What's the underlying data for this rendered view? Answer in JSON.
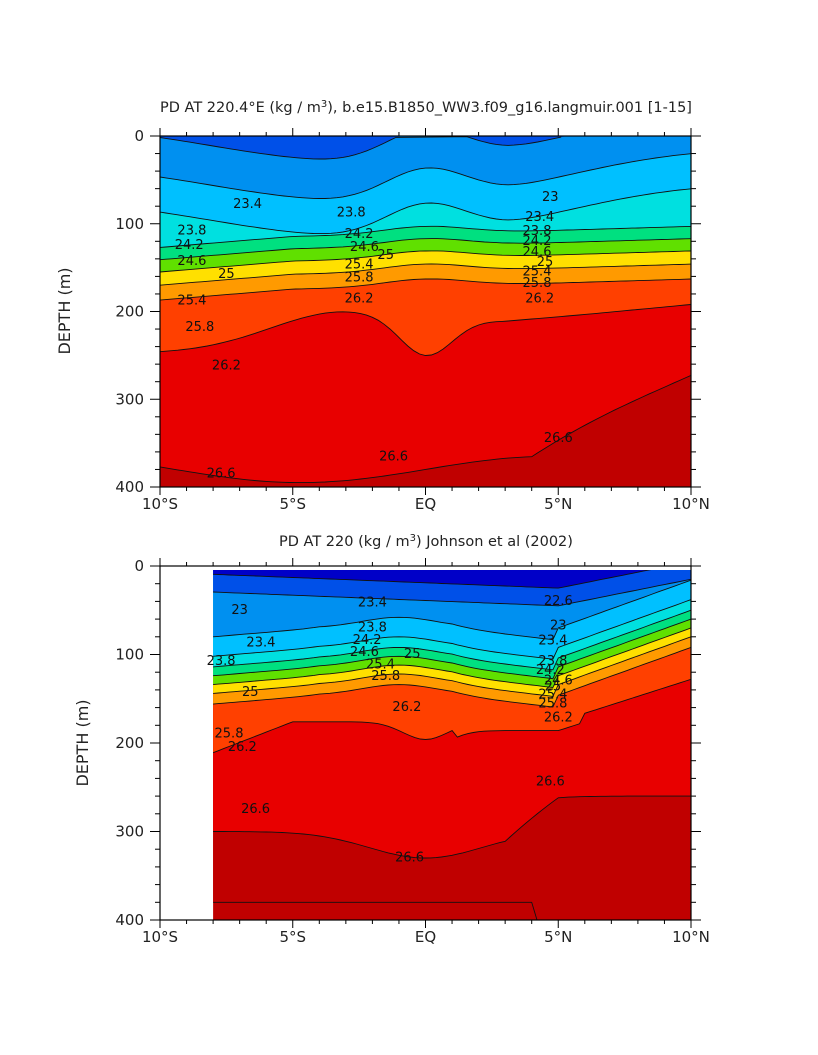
{
  "palette": [
    "#00d6ff",
    "#00c4ff",
    "#00b0f6",
    "#0090ec",
    "#0063e0",
    "#0030cc",
    "#0000b4",
    "#6a00d8",
    "#c000c8",
    "#e000ff"
  ],
  "chart_data": [
    {
      "type": "contour",
      "title_main": "PD AT 220.4°E (kg / m",
      "title_sup": "3",
      "title_rest": "), b.e15.B1850_WW3.f09_g16.langmuir.001 [1-15]",
      "ylabel": "DEPTH  (m)",
      "xticks": [
        "10°S",
        "5°S",
        "EQ",
        "5°N",
        "10°N"
      ],
      "xtick_values": [
        -10,
        -5,
        0,
        5,
        10
      ],
      "yticks": [
        "0",
        "100",
        "200",
        "300",
        "400"
      ],
      "ytick_values": [
        0,
        100,
        200,
        300,
        400
      ],
      "xlim": [
        -10,
        10
      ],
      "ylim": [
        400,
        0
      ],
      "data_xlim": [
        -10,
        10
      ],
      "contour_labels": [
        {
          "text": "23.4",
          "x": -6.7,
          "y": 78
        },
        {
          "text": "23.8",
          "x": -8.8,
          "y": 108
        },
        {
          "text": "24.2",
          "x": -8.9,
          "y": 125
        },
        {
          "text": "24.6",
          "x": -8.8,
          "y": 143
        },
        {
          "text": "25",
          "x": -7.5,
          "y": 158
        },
        {
          "text": "25.4",
          "x": -8.8,
          "y": 188
        },
        {
          "text": "25.8",
          "x": -8.5,
          "y": 218
        },
        {
          "text": "26.2",
          "x": -7.5,
          "y": 262
        },
        {
          "text": "26.6",
          "x": -7.7,
          "y": 385
        },
        {
          "text": "23.8",
          "x": -2.8,
          "y": 88
        },
        {
          "text": "24.2",
          "x": -2.5,
          "y": 112
        },
        {
          "text": "24.6",
          "x": -2.3,
          "y": 127
        },
        {
          "text": "25",
          "x": -1.5,
          "y": 136
        },
        {
          "text": "25.4",
          "x": -2.5,
          "y": 147
        },
        {
          "text": "25.8",
          "x": -2.5,
          "y": 162
        },
        {
          "text": "26.2",
          "x": -2.5,
          "y": 186
        },
        {
          "text": "26.6",
          "x": -1.2,
          "y": 366
        },
        {
          "text": "23",
          "x": 4.7,
          "y": 70
        },
        {
          "text": "23.4",
          "x": 4.3,
          "y": 93
        },
        {
          "text": "23.8",
          "x": 4.2,
          "y": 109
        },
        {
          "text": "24.2",
          "x": 4.2,
          "y": 120
        },
        {
          "text": "24.6",
          "x": 4.2,
          "y": 133
        },
        {
          "text": "25",
          "x": 4.5,
          "y": 144
        },
        {
          "text": "25.4",
          "x": 4.2,
          "y": 155
        },
        {
          "text": "25.8",
          "x": 4.2,
          "y": 168
        },
        {
          "text": "26.2",
          "x": 4.3,
          "y": 186
        },
        {
          "text": "26.6",
          "x": 5.0,
          "y": 345
        }
      ]
    },
    {
      "type": "contour",
      "title_main": "PD AT 220 (kg / m",
      "title_sup": "3",
      "title_rest": ") Johnson et al (2002)",
      "ylabel": "DEPTH  (m)",
      "xticks": [
        "10°S",
        "5°S",
        "EQ",
        "5°N",
        "10°N"
      ],
      "xtick_values": [
        -10,
        -5,
        0,
        5,
        10
      ],
      "yticks": [
        "0",
        "100",
        "200",
        "300",
        "400"
      ],
      "ytick_values": [
        0,
        100,
        200,
        300,
        400
      ],
      "xlim": [
        -10,
        10
      ],
      "ylim": [
        400,
        0
      ],
      "data_xlim": [
        -8,
        10
      ],
      "contour_labels": [
        {
          "text": "23",
          "x": -7.0,
          "y": 50
        },
        {
          "text": "23.4",
          "x": -6.2,
          "y": 87
        },
        {
          "text": "23.8",
          "x": -7.7,
          "y": 108
        },
        {
          "text": "25",
          "x": -6.6,
          "y": 143
        },
        {
          "text": "25.8",
          "x": -7.4,
          "y": 190
        },
        {
          "text": "26.2",
          "x": -6.9,
          "y": 205
        },
        {
          "text": "26.6",
          "x": -6.4,
          "y": 275
        },
        {
          "text": "23.4",
          "x": -2.0,
          "y": 42
        },
        {
          "text": "23.8",
          "x": -2.0,
          "y": 70
        },
        {
          "text": "24.2",
          "x": -2.2,
          "y": 84
        },
        {
          "text": "24.6",
          "x": -2.3,
          "y": 98
        },
        {
          "text": "25",
          "x": -0.5,
          "y": 100
        },
        {
          "text": "25.4",
          "x": -1.7,
          "y": 112
        },
        {
          "text": "25.8",
          "x": -1.5,
          "y": 125
        },
        {
          "text": "26.2",
          "x": -0.7,
          "y": 160
        },
        {
          "text": "26.6",
          "x": -0.6,
          "y": 330
        },
        {
          "text": "22.6",
          "x": 5.0,
          "y": 40
        },
        {
          "text": "23",
          "x": 5.0,
          "y": 68
        },
        {
          "text": "23.4",
          "x": 4.8,
          "y": 85
        },
        {
          "text": "23.8",
          "x": 4.8,
          "y": 108
        },
        {
          "text": "24.2",
          "x": 4.7,
          "y": 118
        },
        {
          "text": "24.6",
          "x": 5.0,
          "y": 130
        },
        {
          "text": "25",
          "x": 4.8,
          "y": 137
        },
        {
          "text": "25.4",
          "x": 4.8,
          "y": 146
        },
        {
          "text": "25.8",
          "x": 4.8,
          "y": 156
        },
        {
          "text": "26.2",
          "x": 5.0,
          "y": 172
        },
        {
          "text": "26.6",
          "x": 4.7,
          "y": 244
        }
      ]
    }
  ]
}
